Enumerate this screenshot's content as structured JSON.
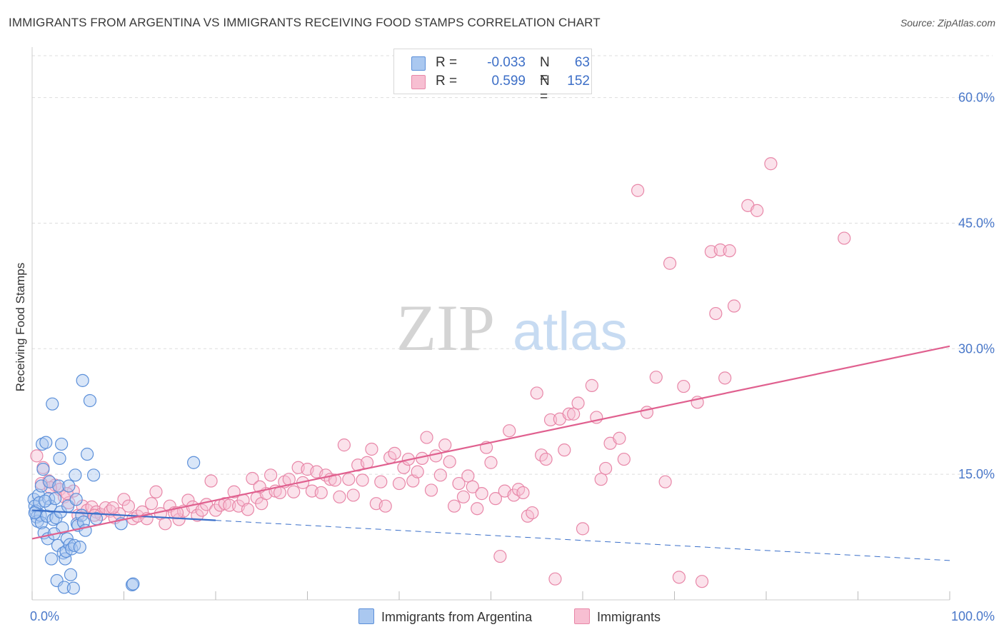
{
  "title": "IMMIGRANTS FROM ARGENTINA VS IMMIGRANTS RECEIVING FOOD STAMPS CORRELATION CHART",
  "source": "Source: ZipAtlas.com",
  "watermark": {
    "zip": "ZIP",
    "atlas": "atlas"
  },
  "legend_top": [
    {
      "r_label": "R =",
      "r_value": "-0.033",
      "n_label": "N =",
      "n_value": "63"
    },
    {
      "r_label": "R =",
      "r_value": "0.599",
      "n_label": "N =",
      "n_value": "152"
    }
  ],
  "legend_bottom": [
    {
      "label": "Immigrants from Argentina"
    },
    {
      "label": "Immigrants"
    }
  ],
  "colors": {
    "blue_fill": "#aac8f0",
    "blue_stroke": "#5b8fd9",
    "blue_line": "#3a6fc9",
    "pink_fill": "#f7bfd2",
    "pink_stroke": "#e887a8",
    "pink_line": "#e0608f",
    "tick_label": "#4a78c9",
    "grid": "#dddddd"
  },
  "chart_data": {
    "type": "scatter",
    "title": "IMMIGRANTS FROM ARGENTINA VS IMMIGRANTS RECEIVING FOOD STAMPS CORRELATION CHART",
    "xlabel": "",
    "ylabel": "Receiving Food Stamps",
    "xlim": [
      0,
      100
    ],
    "ylim": [
      0,
      65
    ],
    "x_tick_labels": [
      "0.0%",
      "100.0%"
    ],
    "y_ticks": [
      15,
      30,
      45,
      60
    ],
    "y_tick_labels": [
      "15.0%",
      "30.0%",
      "45.0%",
      "60.0%"
    ],
    "grid": true,
    "legend_position": "top-center",
    "series": [
      {
        "name": "Immigrants from Argentina",
        "color": "#5b8fd9",
        "points": [
          [
            0.2,
            12.0
          ],
          [
            0.3,
            11.2
          ],
          [
            0.4,
            10.6
          ],
          [
            0.5,
            9.9
          ],
          [
            0.6,
            9.4
          ],
          [
            0.7,
            12.5
          ],
          [
            0.8,
            11.6
          ],
          [
            0.9,
            10.1
          ],
          [
            1.0,
            13.6
          ],
          [
            1.0,
            9.2
          ],
          [
            1.1,
            18.6
          ],
          [
            1.2,
            15.6
          ],
          [
            1.3,
            8.0
          ],
          [
            1.5,
            18.8
          ],
          [
            1.6,
            10.0
          ],
          [
            1.7,
            7.3
          ],
          [
            1.8,
            12.1
          ],
          [
            1.9,
            14.1
          ],
          [
            2.0,
            11.2
          ],
          [
            2.1,
            4.9
          ],
          [
            2.2,
            23.4
          ],
          [
            2.3,
            9.6
          ],
          [
            2.5,
            12.1
          ],
          [
            2.6,
            9.8
          ],
          [
            2.7,
            2.3
          ],
          [
            2.8,
            6.5
          ],
          [
            2.9,
            13.6
          ],
          [
            3.0,
            16.9
          ],
          [
            3.1,
            10.5
          ],
          [
            3.2,
            18.6
          ],
          [
            3.3,
            8.6
          ],
          [
            3.4,
            5.6
          ],
          [
            3.5,
            1.5
          ],
          [
            3.6,
            4.9
          ],
          [
            3.7,
            5.8
          ],
          [
            3.8,
            7.3
          ],
          [
            3.9,
            11.2
          ],
          [
            4.0,
            13.6
          ],
          [
            4.1,
            6.6
          ],
          [
            4.2,
            3.0
          ],
          [
            4.3,
            6.1
          ],
          [
            4.5,
            1.4
          ],
          [
            4.6,
            6.5
          ],
          [
            4.7,
            14.9
          ],
          [
            4.8,
            12.0
          ],
          [
            4.9,
            9.1
          ],
          [
            5.0,
            8.9
          ],
          [
            5.2,
            6.3
          ],
          [
            5.4,
            10.1
          ],
          [
            5.5,
            26.2
          ],
          [
            5.6,
            9.3
          ],
          [
            5.8,
            8.3
          ],
          [
            6.0,
            17.4
          ],
          [
            6.3,
            23.8
          ],
          [
            6.7,
            14.9
          ],
          [
            7.0,
            9.7
          ],
          [
            9.7,
            9.1
          ],
          [
            10.9,
            1.8
          ],
          [
            11.0,
            1.9
          ],
          [
            17.6,
            16.4
          ],
          [
            0.3,
            10.4
          ],
          [
            1.4,
            11.8
          ],
          [
            2.4,
            7.9
          ]
        ]
      },
      {
        "name": "Immigrants",
        "color": "#e887a8",
        "points": [
          [
            0.5,
            17.2
          ],
          [
            1.2,
            15.8
          ],
          [
            1.8,
            14.2
          ],
          [
            2.5,
            13.7
          ],
          [
            3.0,
            13.2
          ],
          [
            3.5,
            12.3
          ],
          [
            4.0,
            11.6
          ],
          [
            4.5,
            13.0
          ],
          [
            5.0,
            10.1
          ],
          [
            5.5,
            11.2
          ],
          [
            6.0,
            10.7
          ],
          [
            6.5,
            11.1
          ],
          [
            7.0,
            10.5
          ],
          [
            7.5,
            10.2
          ],
          [
            8.0,
            11.0
          ],
          [
            8.5,
            10.6
          ],
          [
            9.0,
            9.8
          ],
          [
            9.5,
            10.3
          ],
          [
            10.0,
            12.0
          ],
          [
            10.5,
            11.2
          ],
          [
            11.0,
            9.7
          ],
          [
            11.5,
            10.0
          ],
          [
            12.0,
            10.5
          ],
          [
            12.5,
            9.7
          ],
          [
            13.0,
            11.5
          ],
          [
            13.5,
            12.9
          ],
          [
            14.0,
            10.3
          ],
          [
            14.5,
            9.1
          ],
          [
            15.0,
            11.2
          ],
          [
            15.5,
            10.4
          ],
          [
            16.0,
            9.6
          ],
          [
            16.5,
            10.6
          ],
          [
            17.0,
            11.9
          ],
          [
            17.5,
            11.1
          ],
          [
            18.0,
            10.1
          ],
          [
            18.5,
            10.7
          ],
          [
            19.0,
            11.4
          ],
          [
            19.5,
            14.2
          ],
          [
            20.0,
            10.7
          ],
          [
            20.5,
            11.3
          ],
          [
            21.0,
            11.5
          ],
          [
            21.5,
            11.3
          ],
          [
            22.0,
            12.9
          ],
          [
            22.5,
            11.2
          ],
          [
            23.0,
            11.9
          ],
          [
            23.5,
            10.8
          ],
          [
            24.0,
            14.5
          ],
          [
            24.5,
            12.2
          ],
          [
            25.0,
            11.5
          ],
          [
            25.5,
            12.7
          ],
          [
            26.0,
            14.9
          ],
          [
            26.5,
            13.0
          ],
          [
            27.0,
            12.8
          ],
          [
            27.5,
            14.1
          ],
          [
            28.0,
            14.4
          ],
          [
            28.5,
            12.9
          ],
          [
            29.0,
            15.8
          ],
          [
            29.5,
            14.0
          ],
          [
            30.0,
            15.6
          ],
          [
            30.5,
            13.0
          ],
          [
            31.0,
            15.3
          ],
          [
            31.5,
            12.8
          ],
          [
            32.0,
            14.9
          ],
          [
            32.5,
            14.4
          ],
          [
            33.0,
            14.3
          ],
          [
            33.5,
            12.3
          ],
          [
            34.0,
            18.5
          ],
          [
            34.5,
            14.4
          ],
          [
            35.0,
            12.5
          ],
          [
            35.5,
            16.1
          ],
          [
            36.0,
            14.3
          ],
          [
            36.5,
            16.4
          ],
          [
            37.0,
            18.0
          ],
          [
            37.5,
            11.5
          ],
          [
            38.0,
            14.1
          ],
          [
            38.5,
            11.2
          ],
          [
            39.0,
            17.0
          ],
          [
            39.5,
            17.5
          ],
          [
            40.0,
            13.9
          ],
          [
            40.5,
            15.8
          ],
          [
            41.0,
            16.8
          ],
          [
            41.5,
            14.2
          ],
          [
            42.0,
            15.3
          ],
          [
            42.5,
            16.9
          ],
          [
            43.0,
            19.4
          ],
          [
            43.5,
            13.1
          ],
          [
            44.0,
            17.2
          ],
          [
            44.5,
            14.9
          ],
          [
            45.0,
            18.5
          ],
          [
            45.5,
            16.5
          ],
          [
            46.0,
            11.2
          ],
          [
            46.5,
            13.9
          ],
          [
            47.0,
            12.3
          ],
          [
            47.5,
            14.8
          ],
          [
            48.0,
            13.5
          ],
          [
            48.5,
            10.9
          ],
          [
            49.0,
            12.7
          ],
          [
            49.5,
            18.2
          ],
          [
            50.0,
            16.4
          ],
          [
            50.5,
            12.1
          ],
          [
            51.0,
            5.2
          ],
          [
            51.5,
            13.0
          ],
          [
            52.0,
            20.2
          ],
          [
            52.5,
            12.5
          ],
          [
            53.0,
            13.2
          ],
          [
            53.5,
            12.8
          ],
          [
            54.0,
            10.0
          ],
          [
            54.5,
            10.4
          ],
          [
            55.0,
            24.7
          ],
          [
            55.5,
            17.3
          ],
          [
            56.0,
            16.8
          ],
          [
            56.5,
            21.5
          ],
          [
            57.0,
            2.5
          ],
          [
            57.5,
            21.6
          ],
          [
            58.0,
            17.9
          ],
          [
            58.5,
            22.2
          ],
          [
            59.0,
            22.2
          ],
          [
            59.5,
            23.5
          ],
          [
            60.0,
            8.5
          ],
          [
            61.0,
            25.6
          ],
          [
            61.5,
            21.8
          ],
          [
            62.0,
            14.4
          ],
          [
            62.5,
            15.7
          ],
          [
            63.0,
            18.7
          ],
          [
            64.0,
            19.3
          ],
          [
            64.5,
            16.8
          ],
          [
            66.0,
            48.9
          ],
          [
            67.0,
            22.4
          ],
          [
            68.0,
            26.6
          ],
          [
            69.0,
            14.1
          ],
          [
            69.5,
            40.2
          ],
          [
            70.5,
            2.7
          ],
          [
            71.0,
            25.5
          ],
          [
            72.5,
            23.6
          ],
          [
            73.0,
            2.2
          ],
          [
            74.0,
            41.6
          ],
          [
            74.5,
            34.2
          ],
          [
            75.5,
            26.5
          ],
          [
            75.0,
            41.8
          ],
          [
            76.0,
            41.7
          ],
          [
            76.5,
            35.1
          ],
          [
            78.0,
            47.1
          ],
          [
            79.0,
            46.5
          ],
          [
            80.5,
            52.1
          ],
          [
            88.5,
            43.2
          ],
          [
            1.0,
            13.9
          ],
          [
            2.0,
            13.4
          ],
          [
            3.8,
            12.7
          ],
          [
            6.8,
            10.1
          ],
          [
            8.8,
            11.0
          ],
          [
            15.8,
            10.4
          ],
          [
            24.8,
            13.5
          ]
        ]
      }
    ],
    "trendlines": [
      {
        "series": "Immigrants from Argentina",
        "x0": 0,
        "y0": 10.7,
        "x1": 20,
        "y1": 9.5,
        "style": "solid"
      },
      {
        "series": "Immigrants from Argentina",
        "x0": 20,
        "y0": 9.5,
        "x1": 100,
        "y1": 4.7,
        "style": "dashed"
      },
      {
        "series": "Immigrants",
        "x0": 0,
        "y0": 7.3,
        "x1": 100,
        "y1": 30.3,
        "style": "solid"
      }
    ]
  }
}
